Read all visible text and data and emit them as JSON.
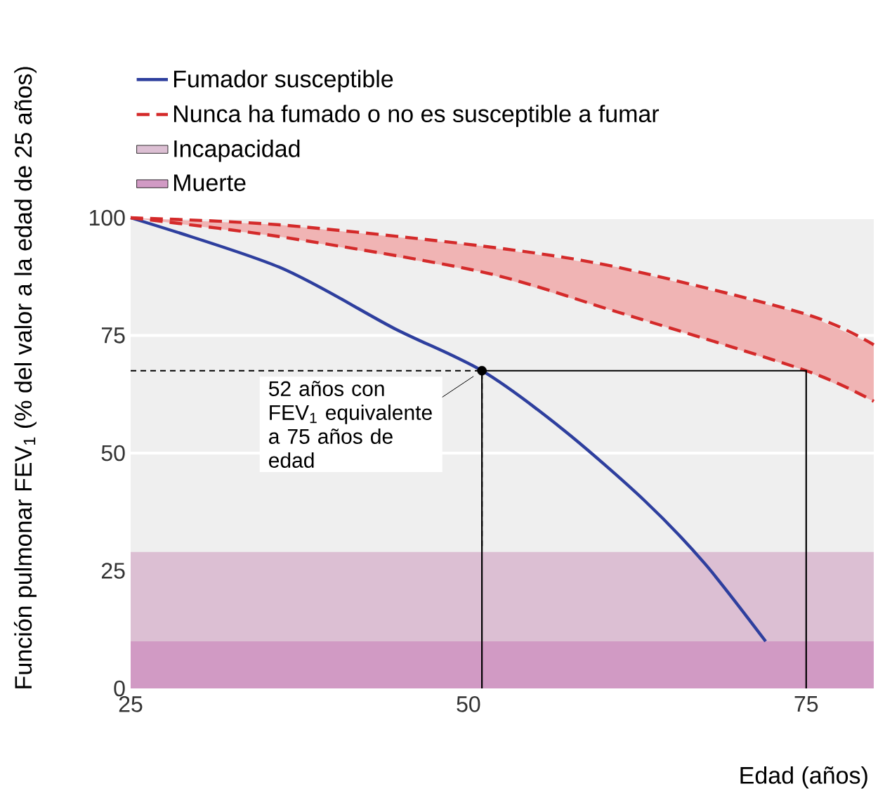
{
  "chart_data": {
    "type": "line",
    "xlabel": "Edad (años)",
    "ylabel": "Función pulmonar FEV$_{1}$ (% del valor a la edad de 25 años)",
    "xlim": [
      25,
      80
    ],
    "ylim": [
      0,
      100
    ],
    "xticks": [
      25,
      50,
      75
    ],
    "yticks": [
      0,
      25,
      50,
      75,
      100
    ],
    "grid": "y",
    "legend": "top left",
    "series": [
      {
        "name": "Fumador susceptible",
        "color": "#2e3f9e",
        "line_style": "solid",
        "x": [
          25,
          36,
          44.5,
          51,
          57,
          63,
          67.5,
          72
        ],
        "values": [
          100,
          89.5,
          76.5,
          67.5,
          55,
          40,
          26.5,
          10
        ]
      },
      {
        "name": "Nunca ha fumado o no es susceptible a fumar",
        "color": "#d42a2a",
        "line_style": "dashed",
        "x": [
          25,
          36,
          51,
          61,
          75,
          80
        ],
        "values": [
          100,
          98.5,
          94,
          89.5,
          79.5,
          73
        ],
        "lower": [
          100,
          96,
          88.5,
          80,
          67.5,
          61
        ],
        "upper": [
          100,
          98.5,
          94,
          89.5,
          79.5,
          73
        ]
      },
      {
        "color": "#d42a2a",
        "line_style": "dashed",
        "x": [
          25,
          36,
          51,
          61,
          75,
          80
        ],
        "values": [
          100,
          96,
          88.5,
          80,
          67.5,
          61
        ]
      },
      {
        "color": "#000000",
        "line_style": "solid",
        "x": [
          51,
          51,
          75,
          75
        ],
        "values": [
          0,
          67.5,
          67.5,
          0
        ]
      },
      {
        "color": "#000000",
        "line_style": "dashed",
        "x": [
          25,
          51,
          51
        ],
        "values": [
          67.5,
          67.5,
          30
        ]
      },
      {
        "type": "scatter",
        "color": "#000000",
        "x": [
          51
        ],
        "values": [
          67.5
        ]
      }
    ],
    "bands": [
      {
        "axis": "y",
        "from": 10,
        "to": 29,
        "label": "Incapacidad",
        "color": "#dcbfd3"
      },
      {
        "axis": "y",
        "from": 0,
        "to": 10,
        "label": "Muerte",
        "color": "#d19ac4"
      }
    ],
    "annotations": [
      {
        "text": "52 años con FEV$_{1}$ equivalente a 75 años de edad",
        "x": 51,
        "y": 67.5
      }
    ]
  }
}
